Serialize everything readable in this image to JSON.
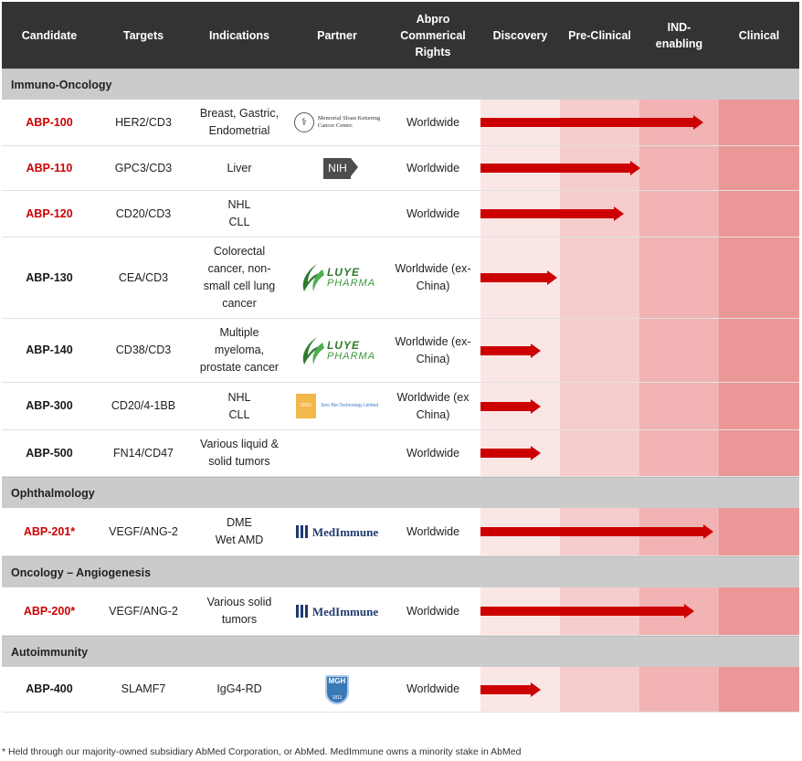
{
  "headers": {
    "candidate": "Candidate",
    "targets": "Targets",
    "indications": "Indications",
    "partner": "Partner",
    "rights": [
      "Abpro",
      "Commerical",
      "Rights"
    ],
    "discovery": "Discovery",
    "preclinical": "Pre-Clinical",
    "ind": [
      "IND-",
      "enabling"
    ],
    "clinical": "Clinical"
  },
  "categories": {
    "immuno": "Immuno-Oncology",
    "ophth": "Ophthalmology",
    "onc_angio": "Oncology – Angiogenesis",
    "autoimm": "Autoimmunity"
  },
  "rows": [
    {
      "candidate": "ABP-100",
      "targets": "HER2/CD3",
      "indications": [
        "Breast, Gastric,",
        "Endometrial"
      ],
      "partner_logo": "msk-logo",
      "rights": [
        "Worldwide"
      ],
      "progress": 0.7
    },
    {
      "candidate": "ABP-110",
      "targets": "GPC3/CD3",
      "indications": [
        "Liver"
      ],
      "partner_logo": "nih-logo",
      "rights": [
        "Worldwide"
      ],
      "progress": 0.5
    },
    {
      "candidate": "ABP-120",
      "targets": "CD20/CD3",
      "indications": [
        "NHL",
        "CLL"
      ],
      "partner_logo": "none",
      "rights": [
        "Worldwide"
      ],
      "progress": 0.45
    },
    {
      "candidate": "ABP-130",
      "targets": "CEA/CD3",
      "indications": [
        "Colorectal",
        "cancer, non-",
        "small cell lung",
        "cancer"
      ],
      "partner_logo": "luye-logo",
      "rights": [
        "Worldwide (ex-",
        "China)"
      ],
      "progress": 0.24
    },
    {
      "candidate": "ABP-140",
      "targets": "CD38/CD3",
      "indications": [
        "Multiple",
        "myeloma,",
        "prostate cancer"
      ],
      "partner_logo": "luye-logo",
      "rights": [
        "Worldwide (ex-",
        "China)"
      ],
      "progress": 0.19
    },
    {
      "candidate": "ABP-300",
      "targets": "CD20/4-1BB",
      "indications": [
        "NHL",
        "CLL"
      ],
      "partner_logo": "sinobio-logo",
      "rights": [
        "Worldwide (ex",
        "China)"
      ],
      "progress": 0.19
    },
    {
      "candidate": "ABP-500",
      "targets": "FN14/CD47",
      "indications": [
        "Various liquid &",
        "solid tumors"
      ],
      "partner_logo": "none",
      "rights": [
        "Worldwide"
      ],
      "progress": 0.19
    },
    {
      "candidate": "ABP-201*",
      "targets": "VEGF/ANG-2",
      "indications": [
        "DME",
        "Wet AMD"
      ],
      "partner_logo": "medimmune-logo",
      "rights": [
        "Worldwide"
      ],
      "progress": 0.73
    },
    {
      "candidate": "ABP-200*",
      "targets": "VEGF/ANG-2",
      "indications": [
        "Various solid",
        "tumors"
      ],
      "partner_logo": "medimmune-logo",
      "rights": [
        "Worldwide"
      ],
      "progress": 0.67
    },
    {
      "candidate": "ABP-400",
      "targets": "SLAMF7",
      "indications": [
        "IgG4-RD"
      ],
      "partner_logo": "mgh-logo",
      "rights": [
        "Worldwide"
      ],
      "progress": 0.19
    }
  ],
  "logos": {
    "msk": [
      "Memorial Sloan Kettering",
      "Cancer Center."
    ],
    "nih": "NIH",
    "luye": [
      "LUYE",
      "PHARMA"
    ],
    "sino": [
      "SINO",
      "Sino Bio-Technology Limited"
    ],
    "medimmune": "MedImmune",
    "mgh": [
      "MGH",
      "1811"
    ]
  },
  "colors": {
    "header_bg": "#333333",
    "red": "#cc0000",
    "discovery": "#fbe6e6",
    "preclinical": "#f6cccc",
    "ind": "#f1b3b3",
    "clinical": "#eb9797"
  },
  "footnote": "* Held through our majority-owned subsidiary AbMed Corporation, or AbMed. MedImmune owns a minority stake in AbMed"
}
